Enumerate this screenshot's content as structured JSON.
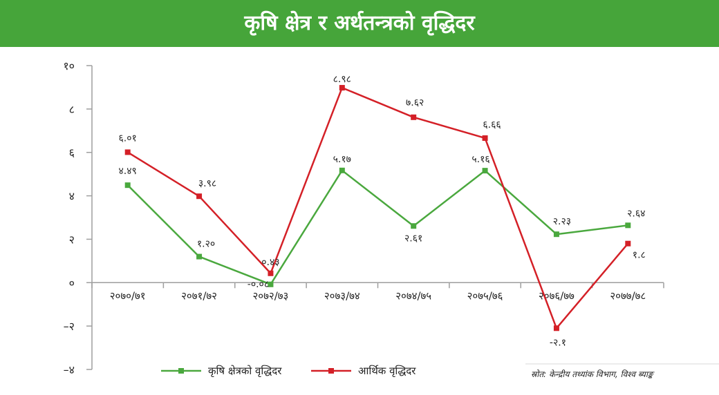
{
  "chart_data": {
    "type": "line",
    "title": "कृषि क्षेत्र र अर्थतन्त्रको वृद्धिदर",
    "categories": [
      "२०७०/७१",
      "२०७१/७२",
      "२०७२/७३",
      "२०७३/७४",
      "२०७४/७५",
      "२०७५/७६",
      "२०७६/७७",
      "२०७७/७८"
    ],
    "ylim": [
      -4,
      10
    ],
    "yticks": [
      10,
      8,
      6,
      4,
      2,
      0,
      -2,
      -4
    ],
    "ytick_labels": [
      "१०",
      "८",
      "६",
      "४",
      "२",
      "०",
      "–२",
      "–४"
    ],
    "series": [
      {
        "name": "कृषि क्षेत्रको वृद्धिदर",
        "color": "#4aa83e",
        "values": [
          4.49,
          1.2,
          -0.08,
          5.17,
          2.61,
          5.16,
          2.23,
          2.64
        ],
        "labels": [
          "४.४९",
          "१.२०",
          "-०.०८",
          "५.१७",
          "२.६१",
          "५.१६",
          "२.२३",
          "२.६४"
        ]
      },
      {
        "name": "आर्थिक वृद्धिदर",
        "color": "#d42027",
        "values": [
          6.01,
          3.98,
          0.43,
          8.98,
          7.62,
          6.66,
          -2.1,
          1.8
        ],
        "labels": [
          "६.०१",
          "३.९८",
          "०.४३",
          "८.९८",
          "७.६२",
          "६.६६",
          "-२.१",
          "१.८"
        ]
      }
    ]
  },
  "source": "स्रोत: केन्द्रीय तथ्यांक विभाग, विश्व ब्याङ्क",
  "colors": {
    "banner": "#46a53a",
    "axis": "#9e9e9e"
  }
}
